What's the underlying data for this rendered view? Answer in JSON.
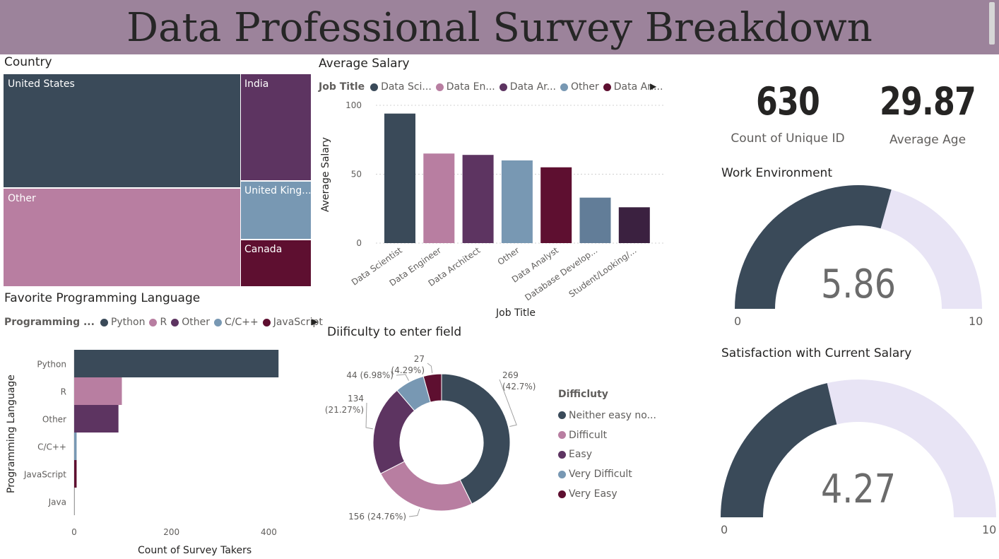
{
  "header": {
    "title": "Data Professional Survey Breakdown"
  },
  "colors": {
    "header_bg": "#9c839b",
    "slate": "#3a4a59",
    "pink": "#b87ea1",
    "purple": "#5d3461",
    "steel": "#7898b3",
    "maroon": "#5e0f30",
    "slate2": "#627d98",
    "plum": "#3b2140",
    "gauge_track": "#e8e4f5"
  },
  "country": {
    "title": "Country",
    "cells": [
      {
        "label": "United States",
        "color": "#3a4a59"
      },
      {
        "label": "Other",
        "color": "#b87ea1"
      },
      {
        "label": "India",
        "color": "#5d3461"
      },
      {
        "label": "United King...",
        "color": "#7898b3"
      },
      {
        "label": "Canada",
        "color": "#5e0f30"
      }
    ]
  },
  "salary": {
    "title": "Average Salary",
    "legend_label": "Job Title",
    "legend_items": [
      {
        "label": "Data Sci...",
        "color": "#3a4a59"
      },
      {
        "label": "Data En...",
        "color": "#b87ea1"
      },
      {
        "label": "Data Ar...",
        "color": "#5d3461"
      },
      {
        "label": "Other",
        "color": "#7898b3"
      },
      {
        "label": "Data An...",
        "color": "#5e0f30"
      }
    ],
    "x_axis_title": "Job Title",
    "y_axis_title": "Average Salary"
  },
  "language": {
    "title": "Favorite Programming Language",
    "legend_label": "Programming ...",
    "legend_items": [
      {
        "label": "Python",
        "color": "#3a4a59"
      },
      {
        "label": "R",
        "color": "#b87ea1"
      },
      {
        "label": "Other",
        "color": "#5d3461"
      },
      {
        "label": "C/C++",
        "color": "#7898b3"
      },
      {
        "label": "JavaScript",
        "color": "#5e0f30"
      }
    ],
    "x_axis_title": "Count of Survey Takers",
    "y_axis_title": "Programming Language"
  },
  "difficulty": {
    "title": "Diificulty to enter field",
    "legend_title": "Difficluty",
    "legend_items": [
      {
        "label": "Neither easy no...",
        "color": "#3a4a59"
      },
      {
        "label": "Difficult",
        "color": "#b87ea1"
      },
      {
        "label": "Easy",
        "color": "#5d3461"
      },
      {
        "label": "Very Difficult",
        "color": "#7898b3"
      },
      {
        "label": "Very Easy",
        "color": "#5e0f30"
      }
    ]
  },
  "cards": {
    "count": {
      "value": "630",
      "label": "Count of Unique ID"
    },
    "age": {
      "value": "29.87",
      "label": "Average Age"
    }
  },
  "gauges": {
    "work": {
      "title": "Work Environment",
      "value_text": "5.86",
      "value": 5.86,
      "min": "0",
      "max": "10",
      "min_num": 0,
      "max_num": 10
    },
    "satisfaction": {
      "title": "Satisfaction with Current Salary",
      "value_text": "4.27",
      "value": 4.27,
      "min": "0",
      "max": "10",
      "min_num": 0,
      "max_num": 10
    }
  },
  "chart_data": [
    {
      "id": "country",
      "type": "treemap",
      "title": "Country",
      "categories": [
        "United States",
        "Other",
        "India",
        "United King...",
        "Canada"
      ],
      "values": [
        253,
        201,
        74,
        32,
        31
      ]
    },
    {
      "id": "salary",
      "type": "bar",
      "title": "Average Salary",
      "xlabel": "Job Title",
      "ylabel": "Average Salary",
      "categories": [
        "Data Scientist",
        "Data Engineer",
        "Data Architect",
        "Other",
        "Data Analyst",
        "Database Develop...",
        "Student/Looking/..."
      ],
      "values": [
        94,
        65,
        64,
        60,
        55,
        33,
        26
      ],
      "colors": [
        "#3a4a59",
        "#b87ea1",
        "#5d3461",
        "#7898b3",
        "#5e0f30",
        "#627d98",
        "#3b2140"
      ],
      "ylim": [
        0,
        100
      ],
      "yticks": [
        0,
        50,
        100
      ]
    },
    {
      "id": "language",
      "type": "bar",
      "orientation": "horizontal",
      "title": "Favorite Programming Language",
      "xlabel": "Count of Survey Takers",
      "ylabel": "Programming Language",
      "categories": [
        "Python",
        "R",
        "Other",
        "C/C++",
        "JavaScript",
        "Java"
      ],
      "values": [
        420,
        98,
        91,
        5,
        5,
        1
      ],
      "colors": [
        "#3a4a59",
        "#b87ea1",
        "#5d3461",
        "#7898b3",
        "#5e0f30",
        "#9e9e9e"
      ],
      "xlim": [
        0,
        440
      ],
      "xticks": [
        0,
        200,
        400
      ]
    },
    {
      "id": "difficulty",
      "type": "pie",
      "donut": true,
      "title": "Diificulty to enter field",
      "categories": [
        "Neither easy nor difficult",
        "Difficult",
        "Easy",
        "Very Difficult",
        "Very Easy"
      ],
      "values": [
        269,
        156,
        134,
        44,
        27
      ],
      "percents": [
        "42.7%",
        "24.76%",
        "21.27%",
        "6.98%",
        "4.29%"
      ],
      "colors": [
        "#3a4a59",
        "#b87ea1",
        "#5d3461",
        "#7898b3",
        "#5e0f30"
      ],
      "data_labels": [
        {
          "count": "269",
          "pct": "(42.7%)"
        },
        {
          "text": "156 (24.76%)"
        },
        {
          "count": "134",
          "pct": "(21.27%)"
        },
        {
          "text": "44 (6.98%)"
        },
        {
          "count": "27",
          "pct": "(4.29%)"
        }
      ]
    }
  ]
}
